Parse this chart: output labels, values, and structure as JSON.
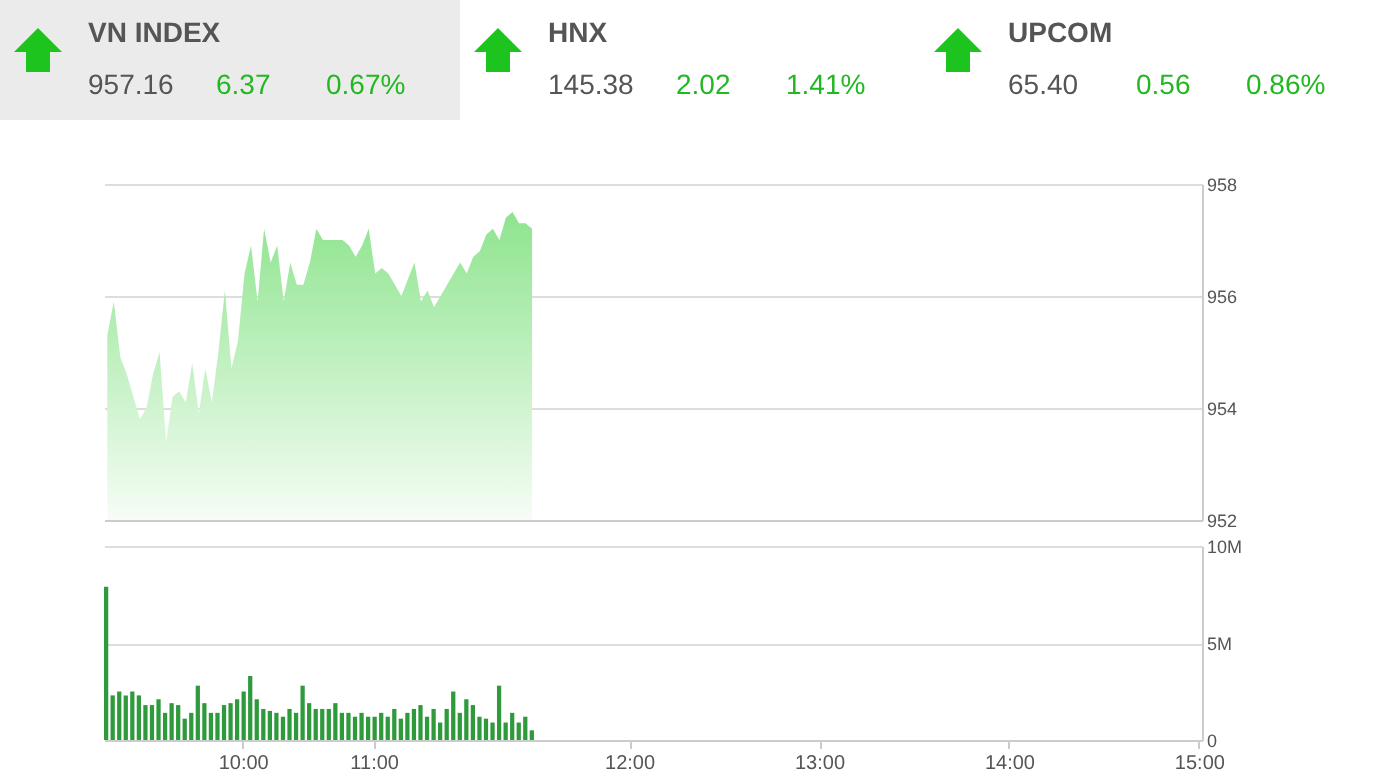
{
  "chart_data": [
    {
      "type": "other",
      "annotations": [
        "VN INDEX",
        "957.16",
        "6.37",
        "0.67%",
        "HNX",
        "145.38",
        "2.02",
        "1.41%",
        "UPCOM",
        "65.40",
        "0.56",
        "0.86%"
      ]
    },
    {
      "type": "area",
      "color": "#8ee48e",
      "ylim": [
        952,
        958
      ],
      "yticks": [
        952,
        954,
        956,
        958
      ],
      "grid": "y",
      "categories": [
        null,
        null,
        null,
        null,
        null,
        null,
        null,
        null,
        null,
        null,
        null,
        null,
        null,
        null,
        null,
        null,
        null,
        null,
        null,
        null,
        null,
        null,
        null,
        null,
        null,
        null,
        null,
        null,
        null,
        null,
        null,
        null,
        null,
        null,
        null,
        null,
        null,
        null,
        null,
        null,
        null,
        null,
        null,
        null,
        null,
        null,
        null,
        null,
        null,
        null,
        null,
        null,
        null,
        null,
        null,
        null,
        null,
        null,
        null,
        null,
        null,
        null,
        null,
        null,
        null,
        null,
        null,
        null,
        null,
        null,
        null,
        null,
        null,
        null,
        null,
        null,
        null,
        null,
        null,
        null,
        null,
        null,
        null,
        null,
        null,
        null,
        null,
        null,
        null,
        null,
        null,
        null,
        null,
        null,
        null,
        null,
        null,
        null,
        null,
        null,
        null,
        null,
        null,
        null,
        null,
        null,
        null,
        null,
        null,
        null,
        null,
        null,
        null,
        null,
        null,
        null,
        null,
        null,
        null,
        null,
        null,
        null,
        null,
        null,
        null,
        null,
        null,
        null,
        null,
        null,
        null,
        null,
        null,
        null,
        null,
        null,
        null,
        null,
        null,
        null,
        null,
        null,
        null,
        null,
        null,
        null,
        null,
        null,
        null,
        null,
        null,
        null,
        null,
        null,
        null,
        null,
        null,
        null,
        null,
        null,
        null,
        null,
        null,
        null,
        null,
        null,
        null,
        null
      ],
      "values": [
        955.3,
        955.9,
        954.9,
        954.6,
        954.2,
        953.8,
        954.0,
        954.6,
        955.0,
        953.4,
        954.2,
        954.3,
        954.1,
        954.8,
        953.9,
        954.7,
        954.1,
        955.0,
        956.1,
        954.7,
        955.2,
        956.4,
        956.9,
        955.9,
        957.2,
        956.6,
        956.9,
        955.9,
        956.6,
        956.2,
        956.2,
        956.6,
        957.2,
        957.0,
        957.0,
        957.0,
        957.0,
        956.9,
        956.7,
        956.9,
        957.2,
        956.4,
        956.5,
        956.4,
        956.2,
        956.0,
        956.3,
        956.6,
        955.9,
        956.1,
        955.8,
        956.0,
        956.2,
        956.4,
        956.6,
        956.4,
        956.7,
        956.8,
        957.1,
        957.2,
        957.0,
        957.4,
        957.5,
        957.3,
        957.3,
        957.2,
        null,
        null,
        null,
        null,
        null,
        null,
        null,
        null,
        null,
        null,
        null,
        null,
        null,
        null,
        null,
        null,
        null,
        null,
        null,
        null,
        null,
        null,
        null,
        null,
        null,
        null,
        null,
        null,
        null,
        null,
        null,
        null,
        null,
        null,
        null,
        null,
        null,
        null,
        null,
        null,
        null,
        null,
        null,
        null,
        null,
        null,
        null,
        null,
        null,
        null,
        null,
        null,
        null,
        null,
        null,
        null,
        null,
        null,
        null,
        null,
        null,
        null,
        null,
        null,
        null,
        null,
        null,
        null,
        null,
        null,
        null,
        null,
        null,
        null,
        null,
        null,
        null,
        null,
        null,
        null,
        null,
        null,
        null,
        null,
        null,
        null,
        null,
        null,
        null,
        null,
        null,
        null,
        null,
        null,
        null,
        null,
        null,
        null,
        null,
        null,
        null,
        null
      ]
    },
    {
      "type": "bar",
      "color": "#2f9a3c",
      "ylim": [
        0,
        10000000
      ],
      "yticks": [
        {
          "value": 0,
          "label": "0"
        },
        {
          "value": 5000000,
          "label": "5M"
        },
        {
          "value": 10000000,
          "label": "10M"
        }
      ],
      "grid": "y",
      "categories": [
        null,
        null,
        null,
        null,
        null,
        null,
        null,
        null,
        null,
        null,
        null,
        null,
        null,
        null,
        null,
        null,
        null,
        null,
        null,
        null,
        null,
        "10:00",
        null,
        null,
        null,
        null,
        null,
        null,
        null,
        null,
        null,
        null,
        null,
        null,
        null,
        null,
        null,
        null,
        null,
        null,
        null,
        "11:00",
        null,
        null,
        null,
        null,
        null,
        null,
        null,
        null,
        null,
        null,
        null,
        null,
        null,
        null,
        null,
        null,
        null,
        null,
        null,
        null,
        null,
        null,
        null,
        null,
        null,
        null,
        null,
        null,
        null,
        null,
        null,
        null,
        null,
        null,
        null,
        null,
        null,
        null,
        "12:00",
        null,
        null,
        null,
        null,
        null,
        null,
        null,
        null,
        null,
        null,
        null,
        null,
        null,
        null,
        null,
        null,
        null,
        null,
        null,
        null,
        null,
        null,
        null,
        null,
        null,
        null,
        null,
        null,
        "13:00",
        null,
        null,
        null,
        null,
        null,
        null,
        null,
        null,
        null,
        null,
        null,
        null,
        null,
        null,
        null,
        null,
        null,
        null,
        null,
        null,
        null,
        null,
        null,
        null,
        null,
        null,
        null,
        null,
        "14:00",
        null,
        null,
        null,
        null,
        null,
        null,
        null,
        null,
        null,
        null,
        null,
        null,
        null,
        null,
        null,
        null,
        null,
        null,
        null,
        null,
        null,
        null,
        null,
        null,
        null,
        null,
        null,
        null,
        "15:00"
      ],
      "values": [
        7900000,
        2300000,
        2500000,
        2300000,
        2500000,
        2300000,
        1800000,
        1800000,
        2100000,
        1400000,
        1900000,
        1800000,
        1100000,
        1400000,
        2800000,
        1900000,
        1400000,
        1400000,
        1800000,
        1900000,
        2100000,
        2500000,
        3300000,
        2100000,
        1600000,
        1500000,
        1400000,
        1200000,
        1600000,
        1400000,
        2800000,
        1900000,
        1600000,
        1600000,
        1600000,
        1900000,
        1400000,
        1400000,
        1200000,
        1400000,
        1200000,
        1200000,
        1400000,
        1200000,
        1600000,
        1100000,
        1400000,
        1600000,
        1800000,
        1200000,
        1600000,
        900000,
        1600000,
        2500000,
        1400000,
        2100000,
        1800000,
        1200000,
        1100000,
        900000,
        2800000,
        900000,
        1400000,
        900000,
        1200000,
        500000,
        null,
        null,
        null,
        null,
        null,
        null,
        null,
        null,
        null,
        null,
        null,
        null,
        null,
        null,
        null,
        null,
        null,
        null,
        null,
        null,
        null,
        null,
        null,
        null,
        null,
        null,
        null,
        null,
        null,
        null,
        null,
        null,
        null,
        null,
        null,
        null,
        null,
        null,
        null,
        null,
        null,
        null,
        null,
        null,
        null,
        null,
        null,
        null,
        null,
        null,
        null,
        null,
        null,
        null,
        null,
        null,
        null,
        null,
        null,
        null,
        null,
        null,
        null,
        null,
        null,
        null,
        null,
        null,
        null,
        null,
        null,
        null,
        null,
        null,
        null,
        null,
        null,
        null,
        null,
        null,
        null,
        null,
        null,
        null,
        null,
        null,
        null,
        null,
        null,
        null,
        null,
        null,
        null,
        null,
        null,
        null,
        null,
        null,
        null,
        null,
        null,
        null
      ]
    }
  ]
}
